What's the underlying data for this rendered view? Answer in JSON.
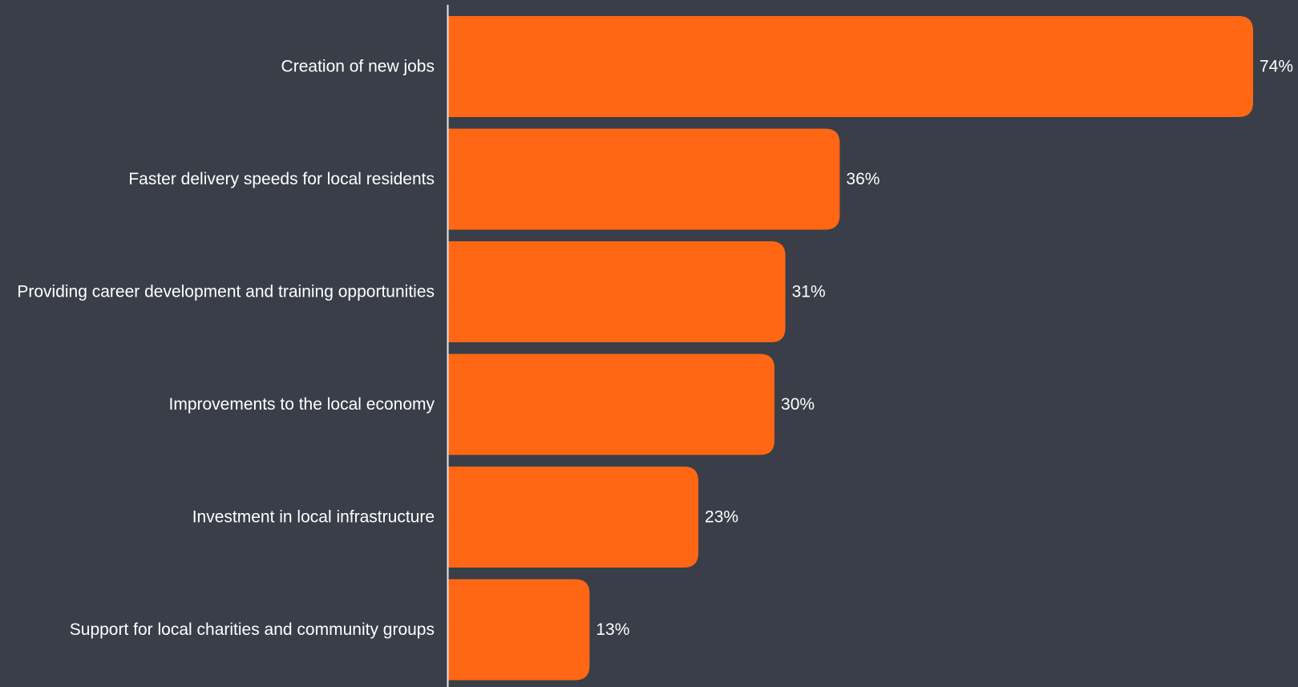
{
  "chart_data": {
    "type": "bar",
    "orientation": "horizontal",
    "categories": [
      "Creation of new jobs",
      "Faster delivery speeds for local residents",
      "Providing career development and training opportunities",
      "Improvements to the local economy",
      "Investment in local infrastructure",
      "Support for local charities and community groups"
    ],
    "values": [
      74,
      36,
      31,
      30,
      23,
      13
    ],
    "value_labels": [
      "74%",
      "36%",
      "31%",
      "30%",
      "23%",
      "13%"
    ],
    "unit": "%",
    "xlim": [
      0,
      74
    ],
    "grid": false,
    "legend": "none"
  },
  "colors": {
    "background": "#393e48",
    "bar": "#ff6714",
    "axis": "#e6e6e6",
    "text": "#ffffff"
  }
}
